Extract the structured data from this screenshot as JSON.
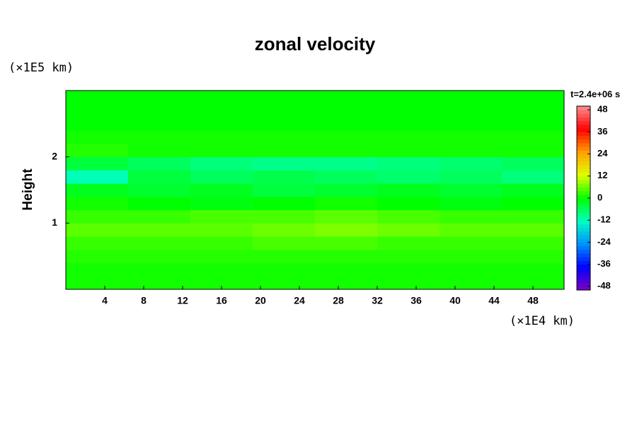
{
  "chart_data": {
    "type": "heatmap",
    "title": "zonal velocity",
    "x_unit": "(×1E4 km)",
    "y_label": "Height",
    "y_unit": "(×1E5 km)",
    "colorbar_title": "t=2.4e+06 s",
    "xlim": [
      0,
      51.2
    ],
    "xticks": [
      4,
      8,
      12,
      16,
      20,
      24,
      28,
      32,
      36,
      40,
      44,
      48
    ],
    "ylim": [
      0,
      3
    ],
    "yticks": [
      1,
      2
    ],
    "colorlim": [
      -50,
      50
    ],
    "cticks": [
      -48,
      -36,
      -24,
      -12,
      0,
      12,
      24,
      36,
      48
    ],
    "colormap": [
      "#8000c0",
      "#0000ff",
      "#0090ff",
      "#00ffc0",
      "#00ff00",
      "#e0ff00",
      "#ffa000",
      "#ff0000",
      "#ff9090"
    ],
    "x": [
      3.2,
      9.6,
      16,
      22.4,
      28.8,
      35.2,
      41.6,
      48
    ],
    "y": [
      0.1,
      0.3,
      0.5,
      0.7,
      0.9,
      1.1,
      1.3,
      1.5,
      1.7,
      1.9,
      2.1,
      2.3,
      2.5,
      2.7,
      2.9
    ],
    "z": [
      [
        1,
        1,
        1,
        1,
        1,
        1,
        1,
        1
      ],
      [
        1,
        1,
        1,
        1,
        1,
        1,
        1,
        1
      ],
      [
        2,
        2,
        2,
        2,
        2,
        2,
        2,
        2
      ],
      [
        3,
        3,
        3,
        4,
        4,
        3,
        3,
        3
      ],
      [
        5,
        5,
        5,
        6,
        7,
        6,
        5,
        5
      ],
      [
        3,
        3,
        4,
        4,
        5,
        4,
        3,
        3
      ],
      [
        1,
        0,
        -1,
        0,
        1,
        0,
        -1,
        0
      ],
      [
        -2,
        -3,
        -2,
        -4,
        -3,
        -2,
        -3,
        -2
      ],
      [
        -12,
        -4,
        -6,
        -5,
        -6,
        -7,
        -6,
        -8
      ],
      [
        -4,
        -6,
        -8,
        -9,
        -9,
        -8,
        -7,
        -6
      ],
      [
        2,
        1,
        1,
        1,
        1,
        1,
        1,
        1
      ],
      [
        1,
        1,
        1,
        1,
        1,
        1,
        1,
        1
      ],
      [
        0,
        0,
        0,
        0,
        0,
        0,
        0,
        0
      ],
      [
        0,
        0,
        0,
        0,
        0,
        0,
        0,
        0
      ],
      [
        0,
        0,
        0,
        0,
        0,
        0,
        0,
        0
      ]
    ]
  }
}
